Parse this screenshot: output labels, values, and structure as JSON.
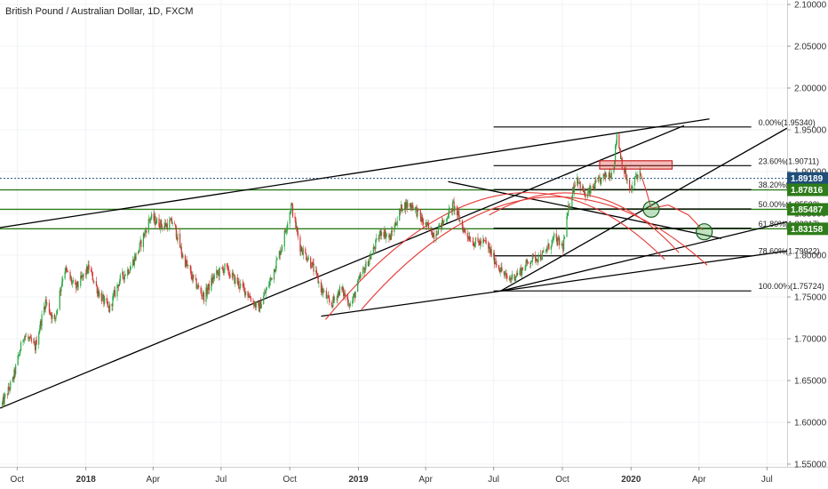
{
  "chart_data": {
    "type": "candlestick",
    "title": "British Pound / Australian Dollar, 1D, FXCM",
    "ylim": [
      1.55,
      2.1
    ],
    "y_ticks": [
      "2.10000",
      "2.05000",
      "2.00000",
      "1.95000",
      "1.90000",
      "1.85000",
      "1.80000",
      "1.75000",
      "1.70000",
      "1.65000",
      "1.60000",
      "1.55000"
    ],
    "y_tick_values": [
      2.1,
      2.05,
      2.0,
      1.95,
      1.9,
      1.85,
      1.8,
      1.75,
      1.7,
      1.65,
      1.6,
      1.55
    ],
    "x_range": [
      "2017-09-08",
      "2020-07-28"
    ],
    "x_ticks": [
      {
        "label": "Oct",
        "date": "2017-10-01"
      },
      {
        "label": "2018",
        "date": "2018-01-01"
      },
      {
        "label": "Apr",
        "date": "2018-04-01"
      },
      {
        "label": "Jul",
        "date": "2018-07-01"
      },
      {
        "label": "Oct",
        "date": "2018-10-01"
      },
      {
        "label": "2019",
        "date": "2019-01-01"
      },
      {
        "label": "Apr",
        "date": "2019-04-01"
      },
      {
        "label": "Jul",
        "date": "2019-07-01"
      },
      {
        "label": "Oct",
        "date": "2019-10-01"
      },
      {
        "label": "2020",
        "date": "2020-01-01"
      },
      {
        "label": "Apr",
        "date": "2020-04-01"
      },
      {
        "label": "Jul",
        "date": "2020-07-01"
      }
    ],
    "price_path": [
      [
        "2017-09-10",
        1.62
      ],
      [
        "2017-09-25",
        1.65
      ],
      [
        "2017-10-10",
        1.705
      ],
      [
        "2017-10-25",
        1.69
      ],
      [
        "2017-11-08",
        1.745
      ],
      [
        "2017-11-20",
        1.72
      ],
      [
        "2017-12-03",
        1.785
      ],
      [
        "2017-12-18",
        1.76
      ],
      [
        "2018-01-05",
        1.785
      ],
      [
        "2018-01-18",
        1.755
      ],
      [
        "2018-02-01",
        1.735
      ],
      [
        "2018-02-15",
        1.77
      ],
      [
        "2018-03-01",
        1.785
      ],
      [
        "2018-03-12",
        1.805
      ],
      [
        "2018-03-28",
        1.845
      ],
      [
        "2018-04-15",
        1.835
      ],
      [
        "2018-04-28",
        1.84
      ],
      [
        "2018-05-10",
        1.8
      ],
      [
        "2018-05-25",
        1.77
      ],
      [
        "2018-06-08",
        1.75
      ],
      [
        "2018-06-22",
        1.775
      ],
      [
        "2018-07-06",
        1.785
      ],
      [
        "2018-07-20",
        1.77
      ],
      [
        "2018-08-05",
        1.755
      ],
      [
        "2018-08-20",
        1.735
      ],
      [
        "2018-09-05",
        1.77
      ],
      [
        "2018-09-20",
        1.81
      ],
      [
        "2018-10-03",
        1.86
      ],
      [
        "2018-10-15",
        1.81
      ],
      [
        "2018-10-30",
        1.79
      ],
      [
        "2018-11-12",
        1.76
      ],
      [
        "2018-11-25",
        1.74
      ],
      [
        "2018-12-08",
        1.76
      ],
      [
        "2018-12-22",
        1.74
      ],
      [
        "2019-01-04",
        1.775
      ],
      [
        "2019-01-18",
        1.8
      ],
      [
        "2019-02-01",
        1.83
      ],
      [
        "2019-02-12",
        1.82
      ],
      [
        "2019-03-01",
        1.86
      ],
      [
        "2019-03-15",
        1.86
      ],
      [
        "2019-03-28",
        1.84
      ],
      [
        "2019-04-12",
        1.825
      ],
      [
        "2019-04-25",
        1.84
      ],
      [
        "2019-05-08",
        1.86
      ],
      [
        "2019-05-22",
        1.83
      ],
      [
        "2019-06-05",
        1.815
      ],
      [
        "2019-06-20",
        1.815
      ],
      [
        "2019-07-05",
        1.79
      ],
      [
        "2019-07-20",
        1.77
      ],
      [
        "2019-08-05",
        1.78
      ],
      [
        "2019-08-20",
        1.795
      ],
      [
        "2019-09-05",
        1.8
      ],
      [
        "2019-09-20",
        1.82
      ],
      [
        "2019-10-02",
        1.81
      ],
      [
        "2019-10-10",
        1.86
      ],
      [
        "2019-10-20",
        1.895
      ],
      [
        "2019-11-01",
        1.87
      ],
      [
        "2019-11-15",
        1.885
      ],
      [
        "2019-11-28",
        1.895
      ],
      [
        "2019-12-08",
        1.9
      ],
      [
        "2019-12-13",
        1.945
      ],
      [
        "2019-12-20",
        1.91
      ],
      [
        "2019-12-31",
        1.875
      ],
      [
        "2020-01-08",
        1.895
      ],
      [
        "2020-01-13",
        1.9
      ]
    ],
    "current_price": 1.89189,
    "horizontal_levels": [
      {
        "label": "1.89189",
        "value": 1.89189,
        "color": "#1f4e79",
        "style": "dotted"
      },
      {
        "label": "1.87816",
        "value": 1.87816,
        "color": "#2e7d1a",
        "style": "solid"
      },
      {
        "label": "1.85487",
        "value": 1.85487,
        "color": "#2e7d1a",
        "style": "solid"
      },
      {
        "label": "1.83158",
        "value": 1.83158,
        "color": "#2e7d1a",
        "style": "solid"
      }
    ],
    "fibonacci": {
      "from_date": "2019-07-01",
      "to_date": "2020-06-10",
      "levels": [
        {
          "label": "0.00%(1.95340)",
          "value": 1.9534
        },
        {
          "label": "23.60%(1.90711)",
          "value": 1.90711
        },
        {
          "label": "38.20%(1.87847)",
          "value": 1.87847
        },
        {
          "label": "50.00%(1.85532)",
          "value": 1.85532
        },
        {
          "label": "61.80%(1.83217)",
          "value": 1.83217
        },
        {
          "label": "78.60%(1.79922)",
          "value": 1.79922
        },
        {
          "label": "100.00%(1.75724)",
          "value": 1.75724
        }
      ]
    },
    "trend_lines": [
      {
        "x1": "2017-09-08",
        "y1": 1.617,
        "x2": "2020-03-12",
        "y2": 1.955
      },
      {
        "x1": "2017-09-08",
        "y1": 1.833,
        "x2": "2020-04-15",
        "y2": 1.963
      },
      {
        "x1": "2018-11-12",
        "y1": 1.727,
        "x2": "2020-07-28",
        "y2": 1.805
      },
      {
        "x1": "2019-05-01",
        "y1": 1.888,
        "x2": "2020-05-01",
        "y2": 1.82
      },
      {
        "x1": "2019-07-10",
        "y1": 1.757,
        "x2": "2020-07-28",
        "y2": 1.84
      },
      {
        "x1": "2019-07-10",
        "y1": 1.757,
        "x2": "2020-07-28",
        "y2": 1.952
      }
    ],
    "arcs": [
      {
        "x1": "2018-11-18",
        "y1": 1.723,
        "cx": "2019-07-18",
        "cy": 1.985,
        "x2": "2020-02-15",
        "y2": 1.795
      },
      {
        "x1": "2019-01-05",
        "y1": 1.735,
        "cx": "2019-08-25",
        "cy": 1.975,
        "x2": "2020-04-12",
        "y2": 1.788
      },
      {
        "x1": "2019-06-25",
        "y1": 1.848,
        "cx": "2019-11-10",
        "cy": 1.918,
        "x2": "2020-03-05",
        "y2": 1.803
      }
    ],
    "resistance_box": {
      "x1": "2019-11-20",
      "x2": "2020-02-25",
      "y1": 1.903,
      "y2": 1.913
    },
    "circles": [
      {
        "x": "2020-01-28",
        "y": 1.855
      },
      {
        "x": "2020-04-08",
        "y": 1.828
      }
    ],
    "red_projection": [
      [
        "2020-01-13",
        1.9
      ],
      [
        "2020-01-22",
        1.875
      ],
      [
        "2020-01-28",
        1.856
      ],
      [
        "2020-02-20",
        1.86
      ],
      [
        "2020-03-18",
        1.848
      ],
      [
        "2020-04-06",
        1.83
      ]
    ]
  }
}
